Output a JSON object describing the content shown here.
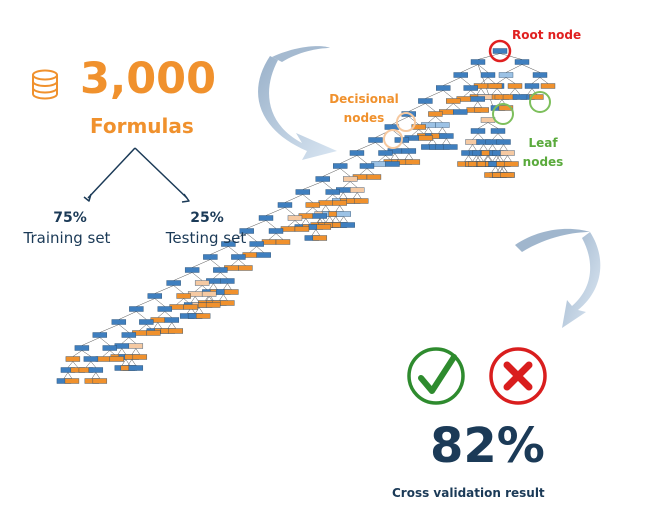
{
  "dataset": {
    "count": "3,000",
    "label": "Formulas",
    "icon": "database-icon",
    "accent_color": "#f0912d"
  },
  "split": {
    "training": {
      "percent": "75%",
      "label": "Training set"
    },
    "testing": {
      "percent": "25%",
      "label": "Testing set"
    }
  },
  "tree": {
    "root_label": "Root node",
    "decisional_label": [
      "Decisional",
      "nodes"
    ],
    "leaf_label": [
      "Leaf",
      "nodes"
    ]
  },
  "result": {
    "percent": "82%",
    "label": "Cross validation result",
    "correct_icon": "check-icon",
    "wrong_icon": "cross-icon"
  },
  "colors": {
    "navy": "#1b3a57",
    "orange": "#f0912d",
    "green": "#5aaa3c",
    "red": "#e02020",
    "blue_node": "#3f7fbf",
    "arrow": "#a9c4df"
  }
}
